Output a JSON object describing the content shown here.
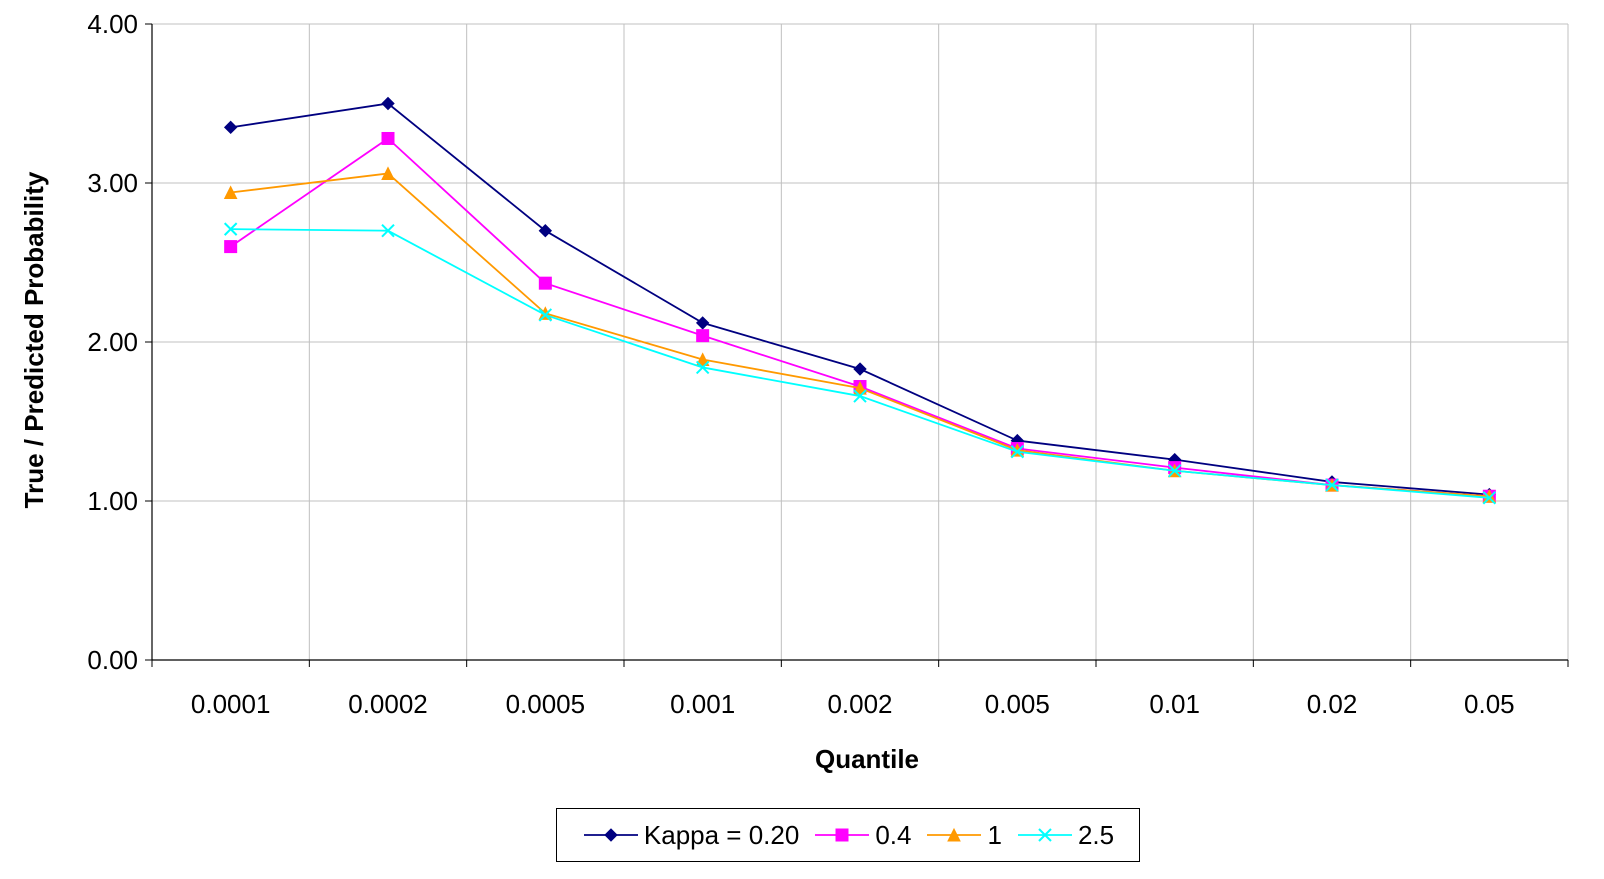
{
  "chart_data": {
    "type": "line",
    "categories": [
      "0.0001",
      "0.0002",
      "0.0005",
      "0.001",
      "0.002",
      "0.005",
      "0.01",
      "0.02",
      "0.05"
    ],
    "xlabel": "Quantile",
    "ylabel": "True / Predicted Probability",
    "ylim": [
      0,
      4
    ],
    "yticks": [
      "0.00",
      "1.00",
      "2.00",
      "3.00",
      "4.00"
    ],
    "grid": true,
    "legend_position": "bottom",
    "series": [
      {
        "name": "Kappa = 0.20",
        "color": "#000080",
        "marker": "diamond",
        "values": [
          3.35,
          3.5,
          2.7,
          2.12,
          1.83,
          1.38,
          1.26,
          1.12,
          1.04
        ]
      },
      {
        "name": "0.4",
        "color": "#FF00FF",
        "marker": "square",
        "values": [
          2.6,
          3.28,
          2.37,
          2.04,
          1.72,
          1.33,
          1.21,
          1.1,
          1.03
        ]
      },
      {
        "name": "1",
        "color": "#FF9900",
        "marker": "triangle",
        "values": [
          2.94,
          3.06,
          2.18,
          1.89,
          1.71,
          1.32,
          1.19,
          1.1,
          1.03
        ]
      },
      {
        "name": "2.5",
        "color": "#00FFFF",
        "marker": "x",
        "values": [
          2.71,
          2.7,
          2.17,
          1.84,
          1.66,
          1.31,
          1.19,
          1.1,
          1.02
        ]
      }
    ]
  }
}
